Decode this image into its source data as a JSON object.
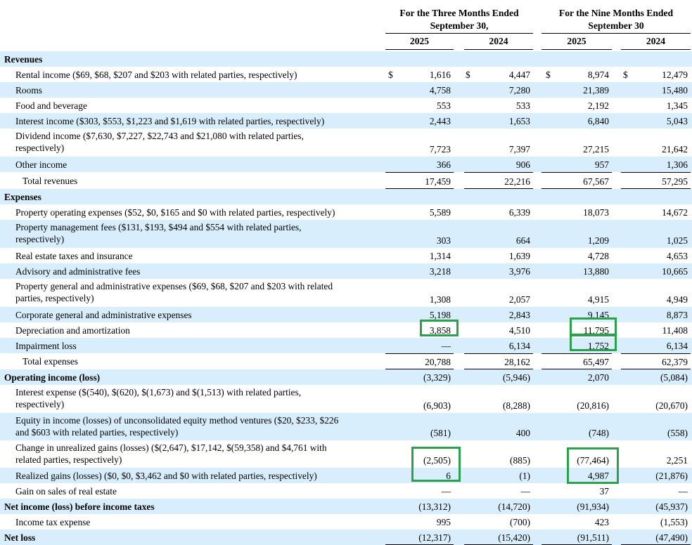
{
  "header": {
    "three_months_title": "For the Three Months Ended September 30,",
    "three_months_line1": "For the Three Months Ended",
    "three_months_line2": "September 30,",
    "nine_months_line1": "For the Nine Months Ended",
    "nine_months_line2": "September 30",
    "years": [
      "2025",
      "2024",
      "2025",
      "2024"
    ]
  },
  "rows": [
    {
      "label": "Revenues",
      "section": true,
      "values": [
        "",
        "",
        "",
        ""
      ]
    },
    {
      "label": "Rental income ($69, $68, $207 and $203 with related parties, respectively)",
      "values": [
        "1,616",
        "4,447",
        "8,974",
        "12,479"
      ],
      "dollar": true
    },
    {
      "label": "Rooms",
      "values": [
        "4,758",
        "7,280",
        "21,389",
        "15,480"
      ]
    },
    {
      "label": "Food and beverage",
      "values": [
        "553",
        "533",
        "2,192",
        "1,345"
      ]
    },
    {
      "label": "Interest income ($303, $553, $1,223 and $1,619 with related parties, respectively)",
      "values": [
        "2,443",
        "1,653",
        "6,840",
        "5,043"
      ]
    },
    {
      "label": "Dividend income ($7,630, $7,227, $22,743 and $21,080 with related parties,",
      "label2": "respectively)",
      "values": [
        "7,723",
        "7,397",
        "27,215",
        "21,642"
      ]
    },
    {
      "label": "Other income",
      "values": [
        "366",
        "906",
        "957",
        "1,306"
      ]
    },
    {
      "label": "Total revenues",
      "total": true,
      "values": [
        "17,459",
        "22,216",
        "67,567",
        "57,295"
      ]
    },
    {
      "label": "Expenses",
      "section": true,
      "values": [
        "",
        "",
        "",
        ""
      ]
    },
    {
      "label": "Property operating expenses ($52, $0, $165 and $0 with related parties, respectively)",
      "values": [
        "5,589",
        "6,339",
        "18,073",
        "14,672"
      ]
    },
    {
      "label": "Property management fees ($131, $193, $494 and $554 with related parties,",
      "label2": "respectively)",
      "values": [
        "303",
        "664",
        "1,209",
        "1,025"
      ]
    },
    {
      "label": "Real estate taxes and insurance",
      "values": [
        "1,314",
        "1,639",
        "4,728",
        "4,653"
      ]
    },
    {
      "label": "Advisory and administrative fees",
      "values": [
        "3,218",
        "3,976",
        "13,880",
        "10,665"
      ]
    },
    {
      "label": "Property general and administrative expenses ($69, $68, $207 and $203 with related",
      "label2": "parties, respectively)",
      "values": [
        "1,308",
        "2,057",
        "4,915",
        "4,949"
      ]
    },
    {
      "label": "Corporate general and administrative expenses",
      "values": [
        "5,198",
        "2,843",
        "9,145",
        "8,873"
      ]
    },
    {
      "label": "Depreciation and amortization",
      "values": [
        "3,858",
        "4,510",
        "11,795",
        "11,408"
      ]
    },
    {
      "label": "Impairment loss",
      "values": [
        "—",
        "6,134",
        "1,752",
        "6,134"
      ]
    },
    {
      "label": "Total expenses",
      "total": true,
      "values": [
        "20,788",
        "28,162",
        "65,497",
        "62,379"
      ]
    },
    {
      "label": "Operating income (loss)",
      "section": true,
      "values": [
        "(3,329)",
        "(5,946)",
        "2,070",
        "(5,084)"
      ]
    },
    {
      "label": "Interest expense ($(540), $(620), $(1,673) and $(1,513) with related parties,",
      "label2": "respectively)",
      "values": [
        "(6,903)",
        "(8,288)",
        "(20,816)",
        "(20,670)"
      ]
    },
    {
      "label": "Equity in income (losses) of unconsolidated equity method ventures ($20, $233, $226",
      "label2": "and $603 with related parties, respectively)",
      "values": [
        "(581)",
        "400",
        "(748)",
        "(558)"
      ]
    },
    {
      "label": "Change in unrealized gains (losses) ($(2,647), $17,142, $(59,358) and $4,761 with",
      "label2": "related parties, respectively)",
      "values": [
        "(2,505)",
        "(885)",
        "(77,464)",
        "2,251"
      ]
    },
    {
      "label": "Realized gains (losses) ($0, $0, $3,462 and $0 with related parties, respectively)",
      "values": [
        "6",
        "(1)",
        "4,987",
        "(21,876)"
      ]
    },
    {
      "label": "Gain on sales of real estate",
      "values": [
        "—",
        "—",
        "37",
        "—"
      ]
    },
    {
      "label": "Net income (loss) before income taxes",
      "section": true,
      "values": [
        "(13,312)",
        "(14,720)",
        "(91,934)",
        "(45,937)"
      ]
    },
    {
      "label": "Income tax expense",
      "values": [
        "995",
        "(700)",
        "423",
        "(1,553)"
      ]
    },
    {
      "label": "Net loss",
      "section": true,
      "values": [
        "(12,317)",
        "(15,420)",
        "(91,511)",
        "(47,490)"
      ]
    }
  ],
  "symbols": {
    "dollar": "$"
  },
  "colors": {
    "shade": "#d9eefc",
    "highlight": "#2aa14a"
  }
}
